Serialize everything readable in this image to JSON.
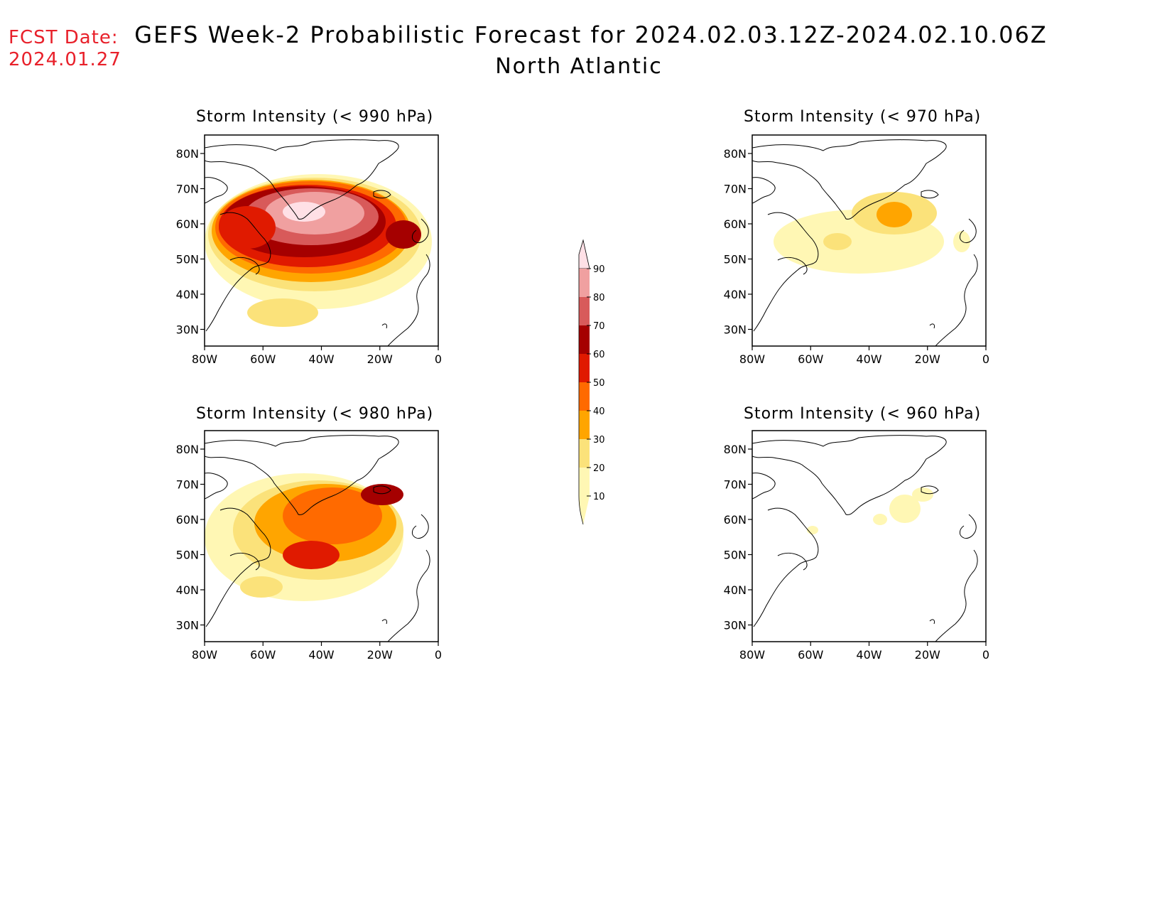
{
  "header": {
    "fcst_line1": "FCST Date:",
    "fcst_line2": "2024.01.27",
    "title_line1": "GEFS Week-2 Probabilistic Forecast for 2024.02.03.12Z-2024.02.10.06Z",
    "title_line2": "North Atlantic"
  },
  "axes": {
    "lat_labels": [
      "80N",
      "70N",
      "60N",
      "50N",
      "40N",
      "30N"
    ],
    "lon_labels": [
      "80W",
      "60W",
      "40W",
      "20W",
      "0"
    ]
  },
  "panels": [
    {
      "id": "p990",
      "title": "Storm Intensity (< 990 hPa)"
    },
    {
      "id": "p970",
      "title": "Storm Intensity (< 970 hPa)"
    },
    {
      "id": "p980",
      "title": "Storm Intensity (< 980 hPa)"
    },
    {
      "id": "p960",
      "title": "Storm Intensity (< 960 hPa)"
    }
  ],
  "colorbar": {
    "levels": [
      "10",
      "20",
      "30",
      "40",
      "50",
      "60",
      "70",
      "80",
      "90"
    ],
    "colors": [
      "#fff7b4",
      "#fbe27a",
      "#ffa500",
      "#ff6a00",
      "#e01a00",
      "#a50000",
      "#d85a5a",
      "#f0a0a0",
      "#ffe0e6"
    ]
  }
}
